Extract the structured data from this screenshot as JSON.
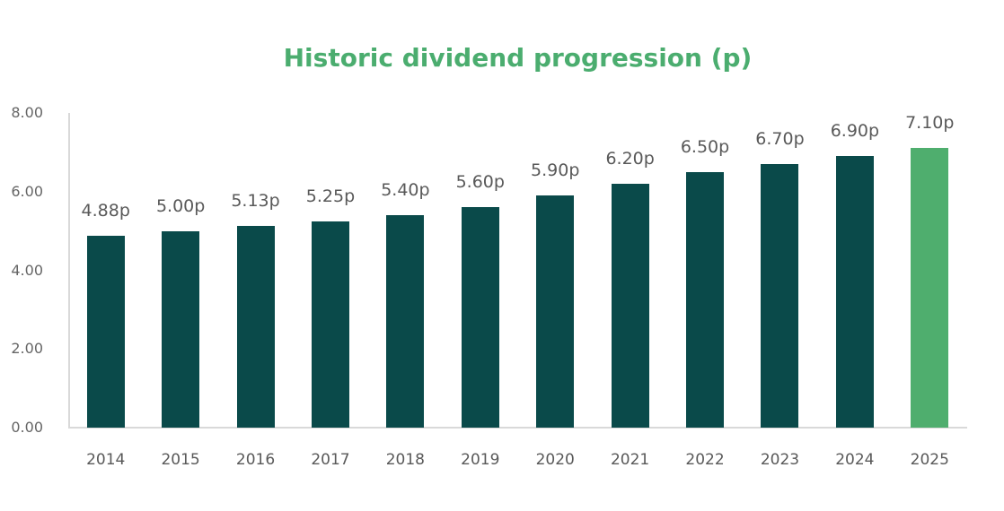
{
  "chart_data": {
    "type": "bar",
    "title": "Historic dividend progression (p)",
    "categories": [
      "2014",
      "2015",
      "2016",
      "2017",
      "2018",
      "2019",
      "2020",
      "2021",
      "2022",
      "2023",
      "2024",
      "2025"
    ],
    "values": [
      4.88,
      5.0,
      5.13,
      5.25,
      5.4,
      5.6,
      5.9,
      6.2,
      6.5,
      6.7,
      6.9,
      7.1
    ],
    "bar_labels": [
      "4.88p",
      "5.00p",
      "5.13p",
      "5.25p",
      "5.40p",
      "5.60p",
      "5.90p",
      "6.20p",
      "6.50p",
      "6.70p",
      "6.90p",
      "7.10p"
    ],
    "ytick_labels": [
      "0.00",
      "2.00",
      "4.00",
      "6.00",
      "8.00"
    ],
    "ytick_values": [
      0,
      2,
      4,
      6,
      8
    ],
    "ylim": [
      0,
      8
    ],
    "xlabel": "",
    "ylabel": "",
    "grid": false,
    "legend": "none",
    "highlight_index": 11,
    "colors": {
      "bar": "#0A4A4A",
      "bar_highlight": "#4FAE6E",
      "title": "#4BAD6F",
      "tick_text": "#666666",
      "value_text": "#595959",
      "axis_line": "#D9D9D9"
    }
  }
}
